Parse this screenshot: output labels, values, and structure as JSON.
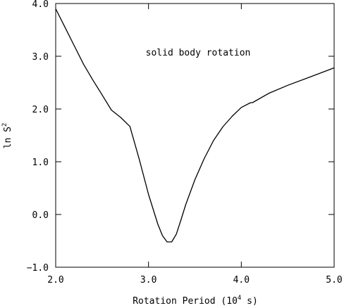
{
  "chart_data": {
    "type": "line",
    "xlabel": "Rotation Period (10",
    "xlabel_sup": "4",
    "xlabel_end": " s)",
    "ylabel": "ln S",
    "ylabel_sup": "2",
    "annotation": "solid body rotation",
    "xlim": [
      2.0,
      5.0
    ],
    "ylim": [
      -1.0,
      4.0
    ],
    "x_ticks": [
      2.0,
      3.0,
      4.0,
      5.0
    ],
    "x_tick_labels": [
      "2.0",
      "3.0",
      "4.0",
      "5.0"
    ],
    "y_ticks": [
      -1.0,
      0.0,
      1.0,
      2.0,
      3.0,
      4.0
    ],
    "y_tick_labels": [
      "−1.0",
      "0.0",
      "1.0",
      "2.0",
      "3.0",
      "4.0"
    ],
    "grid": false,
    "series": [
      {
        "x": [
          2.0,
          2.1,
          2.2,
          2.3,
          2.4,
          2.5,
          2.6,
          2.7,
          2.8,
          2.9,
          3.0,
          3.1,
          3.15,
          3.2,
          3.25,
          3.3,
          3.35,
          3.4,
          3.5,
          3.6,
          3.7,
          3.8,
          3.9,
          4.0,
          4.1,
          4.12,
          4.3,
          4.5,
          4.7,
          5.0
        ],
        "y": [
          3.9,
          3.55,
          3.2,
          2.85,
          2.55,
          2.27,
          1.98,
          1.84,
          1.67,
          1.05,
          0.38,
          -0.18,
          -0.4,
          -0.52,
          -0.52,
          -0.37,
          -0.1,
          0.18,
          0.66,
          1.06,
          1.4,
          1.66,
          1.86,
          2.03,
          2.12,
          2.12,
          2.3,
          2.45,
          2.58,
          2.78
        ]
      }
    ]
  }
}
